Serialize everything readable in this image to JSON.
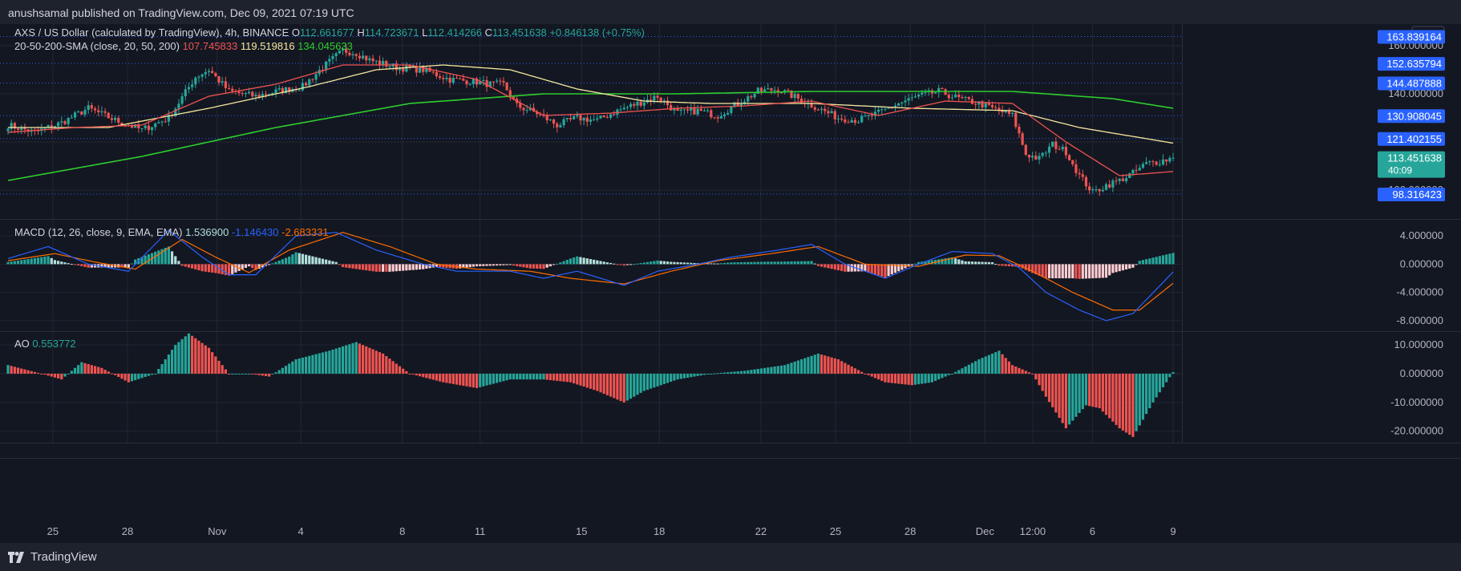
{
  "header": {
    "attribution": "anushsamal published on TradingView.com, Dec 09, 2021 07:19 UTC"
  },
  "footer": {
    "brand": "TradingView"
  },
  "colors": {
    "background": "#131722",
    "grid": "#232733",
    "bull": "#26a69a",
    "bear": "#ef5350",
    "sma20": "#ef5350",
    "sma50": "#f5e79e",
    "sma200": "#2ece2e",
    "macd": "#2962ff",
    "signal": "#ff6d00",
    "label_blue": "#2962ff"
  },
  "chart_data": [
    {
      "type": "candlestick",
      "pane": "price",
      "symbol_line": "AXS / US Dollar (calculated by TradingView), 4h, BINANCE",
      "ohlc": {
        "o_label": "O",
        "o": "112.661677",
        "h_label": "H",
        "h": "114.723671",
        "l_label": "L",
        "l": "112.414266",
        "c_label": "C",
        "c": "113.451638",
        "change": "+0.846138 (+0.75%)"
      },
      "indicator": {
        "name": "20-50-200-SMA (close, 20, 50, 200)",
        "sma20": "107.745833",
        "sma50": "119.519816",
        "sma200": "134.045633"
      },
      "currency": "USD",
      "ylim": [
        88,
        169
      ],
      "y_ticks": [
        "160.000000",
        "140.000000",
        "120.000000",
        "100.000000"
      ],
      "price_labels": [
        {
          "value": 163.839164,
          "text": "163.839164"
        },
        {
          "value": 152.635794,
          "text": "152.635794"
        },
        {
          "value": 144.487888,
          "text": "144.487888"
        },
        {
          "value": 130.908045,
          "text": "130.908045"
        },
        {
          "value": 121.402155,
          "text": "121.402155"
        },
        {
          "value": 98.316423,
          "text": "98.316423"
        }
      ],
      "last_price": {
        "value": 113.451638,
        "text": "113.451638",
        "countdown": "40:09"
      },
      "x_ticks": [
        "25",
        "28",
        "Nov",
        "4",
        "8",
        "11",
        "15",
        "18",
        "22",
        "25",
        "28",
        "Dec",
        "12:00",
        "6",
        "9"
      ],
      "close_path_key_points": [
        [
          0,
          127
        ],
        [
          8,
          124
        ],
        [
          16,
          128
        ],
        [
          24,
          134
        ],
        [
          32,
          129
        ],
        [
          40,
          125
        ],
        [
          48,
          130
        ],
        [
          56,
          147
        ],
        [
          60,
          150
        ],
        [
          66,
          141
        ],
        [
          74,
          139
        ],
        [
          80,
          141
        ],
        [
          88,
          143
        ],
        [
          94,
          151
        ],
        [
          100,
          158
        ],
        [
          104,
          157
        ],
        [
          108,
          154
        ],
        [
          116,
          151
        ],
        [
          124,
          150
        ],
        [
          132,
          146
        ],
        [
          140,
          145
        ],
        [
          144,
          144
        ],
        [
          148,
          144
        ],
        [
          152,
          135
        ],
        [
          158,
          132
        ],
        [
          164,
          127
        ],
        [
          170,
          130
        ],
        [
          176,
          129
        ],
        [
          182,
          133
        ],
        [
          188,
          136
        ],
        [
          194,
          139
        ],
        [
          200,
          132
        ],
        [
          206,
          133
        ],
        [
          212,
          131
        ],
        [
          218,
          136
        ],
        [
          224,
          141
        ],
        [
          230,
          142
        ],
        [
          236,
          138
        ],
        [
          242,
          134
        ],
        [
          248,
          130
        ],
        [
          254,
          129
        ],
        [
          260,
          132
        ],
        [
          266,
          136
        ],
        [
          272,
          139
        ],
        [
          278,
          141
        ],
        [
          284,
          138
        ],
        [
          290,
          136
        ],
        [
          296,
          133
        ],
        [
          300,
          131
        ],
        [
          304,
          115
        ],
        [
          308,
          113
        ],
        [
          312,
          119
        ],
        [
          316,
          116
        ],
        [
          320,
          106
        ],
        [
          324,
          99
        ],
        [
          328,
          102
        ],
        [
          332,
          104
        ],
        [
          336,
          107
        ],
        [
          340,
          111
        ],
        [
          344,
          112
        ],
        [
          348,
          113.45
        ]
      ],
      "sma20_values": [
        [
          0,
          124
        ],
        [
          20,
          126
        ],
        [
          40,
          127
        ],
        [
          60,
          139
        ],
        [
          80,
          144
        ],
        [
          100,
          152
        ],
        [
          120,
          152
        ],
        [
          140,
          146
        ],
        [
          160,
          131
        ],
        [
          180,
          132
        ],
        [
          200,
          134
        ],
        [
          220,
          135
        ],
        [
          240,
          137
        ],
        [
          260,
          131
        ],
        [
          280,
          137
        ],
        [
          300,
          136
        ],
        [
          316,
          120
        ],
        [
          332,
          106
        ],
        [
          348,
          107.7
        ]
      ],
      "sma50_values": [
        [
          0,
          126
        ],
        [
          30,
          126
        ],
        [
          60,
          134
        ],
        [
          90,
          143
        ],
        [
          110,
          150
        ],
        [
          130,
          152
        ],
        [
          150,
          150
        ],
        [
          170,
          142
        ],
        [
          190,
          137
        ],
        [
          210,
          136
        ],
        [
          240,
          136
        ],
        [
          270,
          134
        ],
        [
          300,
          133
        ],
        [
          320,
          126
        ],
        [
          348,
          119.5
        ]
      ],
      "sma200_values": [
        [
          0,
          104
        ],
        [
          40,
          114
        ],
        [
          80,
          126
        ],
        [
          120,
          136
        ],
        [
          160,
          140
        ],
        [
          200,
          140
        ],
        [
          240,
          141
        ],
        [
          280,
          141
        ],
        [
          300,
          141
        ],
        [
          330,
          138
        ],
        [
          348,
          134
        ]
      ]
    },
    {
      "type": "line+histogram",
      "pane": "macd",
      "label": "MACD (12, 26, close, 9, EMA, EMA)",
      "values": [
        "1.536900",
        "-1.146430",
        "-2.683331"
      ],
      "ylim": [
        -9.5,
        6.3
      ],
      "y_ticks": [
        "4.000000",
        "0.000000",
        "-4.000000",
        "-8.000000"
      ],
      "macd_points": [
        [
          0,
          0.8
        ],
        [
          12,
          2.5
        ],
        [
          24,
          0
        ],
        [
          36,
          -1
        ],
        [
          48,
          4.8
        ],
        [
          58,
          1
        ],
        [
          66,
          -1.5
        ],
        [
          74,
          -1.5
        ],
        [
          86,
          4
        ],
        [
          98,
          4.5
        ],
        [
          110,
          2
        ],
        [
          124,
          0
        ],
        [
          134,
          -1
        ],
        [
          150,
          -1
        ],
        [
          160,
          -2
        ],
        [
          170,
          -1
        ],
        [
          184,
          -3
        ],
        [
          194,
          -1
        ],
        [
          206,
          0
        ],
        [
          216,
          1
        ],
        [
          230,
          2
        ],
        [
          240,
          2.8
        ],
        [
          250,
          0
        ],
        [
          262,
          -2
        ],
        [
          272,
          0
        ],
        [
          282,
          1.8
        ],
        [
          294,
          1.5
        ],
        [
          302,
          -0.5
        ],
        [
          310,
          -4
        ],
        [
          320,
          -6.5
        ],
        [
          328,
          -8
        ],
        [
          336,
          -7
        ],
        [
          348,
          -1.1
        ]
      ],
      "signal_points": [
        [
          0,
          0.5
        ],
        [
          14,
          1.5
        ],
        [
          26,
          0.3
        ],
        [
          38,
          -0.7
        ],
        [
          52,
          3.5
        ],
        [
          62,
          1
        ],
        [
          72,
          -1.2
        ],
        [
          84,
          2
        ],
        [
          100,
          4.5
        ],
        [
          114,
          2.5
        ],
        [
          128,
          0
        ],
        [
          140,
          -0.7
        ],
        [
          156,
          -1
        ],
        [
          168,
          -2
        ],
        [
          184,
          -2.8
        ],
        [
          198,
          -1
        ],
        [
          212,
          0.5
        ],
        [
          228,
          1.5
        ],
        [
          242,
          2.5
        ],
        [
          256,
          0
        ],
        [
          272,
          -0.3
        ],
        [
          286,
          1.3
        ],
        [
          296,
          1.2
        ],
        [
          306,
          -1
        ],
        [
          318,
          -4
        ],
        [
          330,
          -6.5
        ],
        [
          338,
          -6.5
        ],
        [
          348,
          -2.7
        ]
      ]
    },
    {
      "type": "histogram",
      "pane": "ao",
      "label": "AO",
      "value": "0.553772",
      "ylim": [
        -24,
        14.5
      ],
      "y_ticks": [
        "10.000000",
        "0.000000",
        "-10.000000",
        "-20.000000"
      ],
      "ao_points": [
        [
          0,
          3
        ],
        [
          10,
          0
        ],
        [
          16,
          -2
        ],
        [
          22,
          4
        ],
        [
          28,
          2
        ],
        [
          36,
          -3
        ],
        [
          44,
          0
        ],
        [
          50,
          10
        ],
        [
          54,
          14
        ],
        [
          60,
          9
        ],
        [
          66,
          0
        ],
        [
          72,
          0
        ],
        [
          78,
          -1
        ],
        [
          86,
          5
        ],
        [
          96,
          8
        ],
        [
          104,
          11
        ],
        [
          112,
          7
        ],
        [
          120,
          0
        ],
        [
          130,
          -3
        ],
        [
          140,
          -5
        ],
        [
          150,
          -2
        ],
        [
          160,
          -2
        ],
        [
          168,
          -3
        ],
        [
          176,
          -6
        ],
        [
          184,
          -10
        ],
        [
          190,
          -6
        ],
        [
          200,
          -2
        ],
        [
          210,
          0
        ],
        [
          220,
          1
        ],
        [
          232,
          3
        ],
        [
          242,
          7
        ],
        [
          248,
          5
        ],
        [
          256,
          0
        ],
        [
          262,
          -3
        ],
        [
          270,
          -4
        ],
        [
          276,
          -3
        ],
        [
          282,
          0
        ],
        [
          290,
          5
        ],
        [
          296,
          8
        ],
        [
          300,
          3
        ],
        [
          306,
          0
        ],
        [
          310,
          -8
        ],
        [
          316,
          -19
        ],
        [
          322,
          -11
        ],
        [
          326,
          -12
        ],
        [
          332,
          -19
        ],
        [
          336,
          -22
        ],
        [
          342,
          -10
        ],
        [
          348,
          0.55
        ]
      ]
    }
  ]
}
